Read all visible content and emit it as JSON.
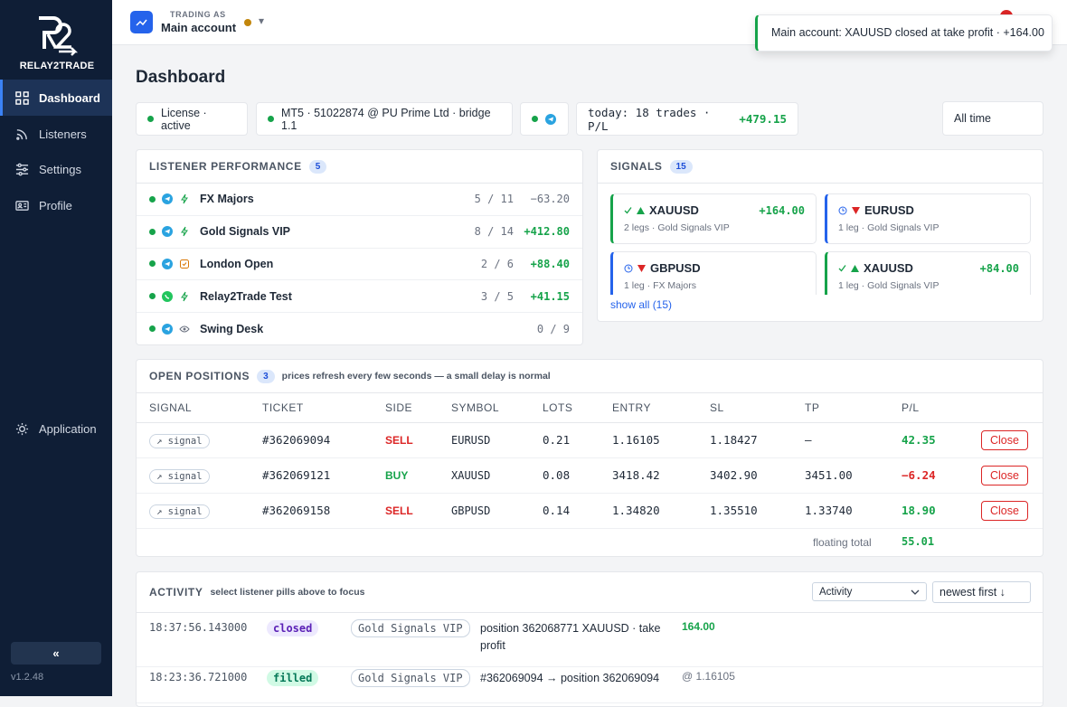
{
  "sidebar": {
    "logo_text": "RELAY2TRADE",
    "nav": [
      "Dashboard",
      "Listeners",
      "Settings",
      "Profile"
    ],
    "application": "Application",
    "collapse": "«",
    "version": "v1.2.48"
  },
  "topbar": {
    "trading_as": "TRADING AS",
    "account": "Main account",
    "caret": "▾"
  },
  "toast": "Main account: XAUUSD closed at take profit · +164.00",
  "page_title": "Dashboard",
  "status": {
    "license": "License · active",
    "mt5": "MT5 · 51022874 @ PU Prime Ltd · bridge 1.1",
    "today": "today: 18 trades · P/L",
    "today_pl": "+479.15",
    "range": "All time"
  },
  "listener_performance": {
    "title": "LISTENER PERFORMANCE",
    "count": "5",
    "rows": [
      {
        "name": "FX Majors",
        "ratio": "5 / 11",
        "pl": "−63.20"
      },
      {
        "name": "Gold Signals VIP",
        "ratio": "8 / 14",
        "pl": "+412.80"
      },
      {
        "name": "London Open",
        "ratio": "2 / 6",
        "pl": "+88.40"
      },
      {
        "name": "Relay2Trade Test",
        "ratio": "3 / 5",
        "pl": "+41.15"
      },
      {
        "name": "Swing Desk",
        "ratio": "0 / 9"
      }
    ]
  },
  "signals": {
    "title": "SIGNALS",
    "count": "15",
    "cards": [
      {
        "symbol": "XAUUSD",
        "meta": "2 legs · Gold Signals VIP",
        "pl": "+164.00"
      },
      {
        "symbol": "EURUSD",
        "meta": "1 leg · Gold Signals VIP"
      },
      {
        "symbol": "GBPUSD",
        "meta": "1 leg · FX Majors"
      },
      {
        "symbol": "XAUUSD",
        "meta": "1 leg · Gold Signals VIP",
        "pl": "+84.00"
      }
    ],
    "show_all": "show all (15)"
  },
  "open_positions": {
    "title": "OPEN POSITIONS",
    "count": "3",
    "note": "prices refresh every few seconds — a small delay is normal",
    "columns": [
      "SIGNAL",
      "TICKET",
      "SIDE",
      "SYMBOL",
      "LOTS",
      "ENTRY",
      "SL",
      "TP",
      "P/L"
    ],
    "rows": [
      [
        "↗ signal",
        "#362069094",
        "SELL",
        "EURUSD",
        "0.21",
        "1.16105",
        "1.18427",
        "–",
        "42.35"
      ],
      [
        "↗ signal",
        "#362069121",
        "BUY",
        "XAUUSD",
        "0.08",
        "3418.42",
        "3402.90",
        "3451.00",
        "−6.24"
      ],
      [
        "↗ signal",
        "#362069158",
        "SELL",
        "GBPUSD",
        "0.14",
        "1.34820",
        "1.35510",
        "1.33740",
        "18.90"
      ]
    ],
    "close": "Close",
    "floating_total_label": "floating total",
    "floating_total": "55.01"
  },
  "activity": {
    "title": "ACTIVITY",
    "hint": "select listener pills above to focus",
    "filter": "Activity",
    "sort": "newest first ↓",
    "rows": [
      {
        "time": "18:37:56.143000",
        "status": "closed",
        "listener": "Gold Signals VIP",
        "text": "position 362068771 XAUUSD · take profit",
        "value": "164.00"
      },
      {
        "time": "18:23:36.721000",
        "status": "filled",
        "listener": "Gold Signals VIP",
        "text": "#362069094 → position 362069094",
        "value": "@ 1.16105"
      }
    ]
  }
}
